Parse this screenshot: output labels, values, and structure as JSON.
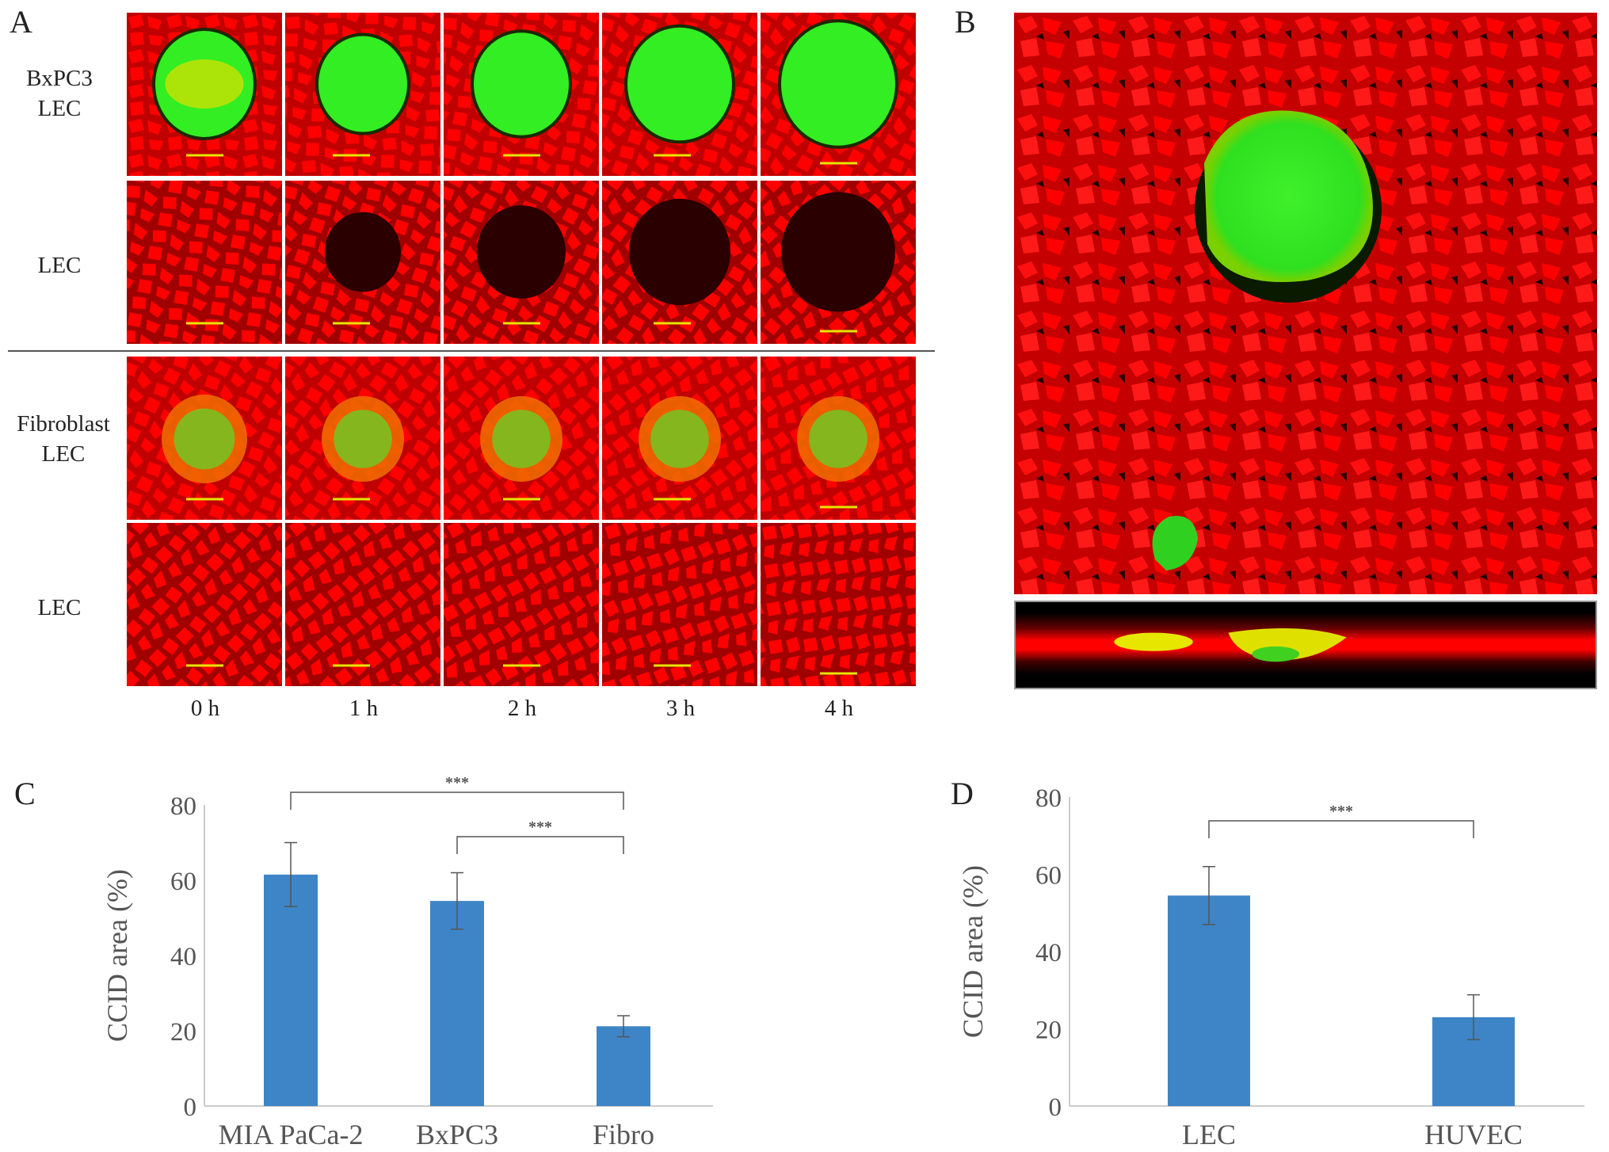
{
  "panels": {
    "a": {
      "letter": "A",
      "row_labels": [
        [
          "BxPC3",
          "LEC"
        ],
        [
          "LEC"
        ],
        [
          "Fibroblast",
          "LEC"
        ],
        [
          "LEC"
        ]
      ],
      "time_labels": [
        "0 h",
        "1 h",
        "2 h",
        "3 h",
        "4 h"
      ],
      "colors": {
        "cells": "#ff0000",
        "background": "#2a0000",
        "spheroid": "#33ee22",
        "overlap": "#e0e000",
        "scale_bar": "#e6e600"
      }
    },
    "b": {
      "letter": "B"
    },
    "c": {
      "letter": "C"
    },
    "d": {
      "letter": "D"
    }
  },
  "chart_data": [
    {
      "type": "bar",
      "panel": "C",
      "categories": [
        "MIA PaCa-2",
        "BxPC3",
        "Fibro"
      ],
      "values": [
        61.5,
        54.5,
        21.2
      ],
      "error": [
        8.5,
        7.5,
        2.8
      ],
      "ylabel": "CCID area (%)",
      "ylim": [
        0,
        80
      ],
      "yticks": [
        0,
        20,
        40,
        60,
        80
      ],
      "significance": [
        {
          "from": 0,
          "to": 2,
          "label": "***"
        },
        {
          "from": 1,
          "to": 2,
          "label": "***"
        }
      ],
      "bar_color": "#3d85c6",
      "grid": false
    },
    {
      "type": "bar",
      "panel": "D",
      "categories": [
        "LEC",
        "HUVEC"
      ],
      "values": [
        54.5,
        23.0
      ],
      "error": [
        7.5,
        5.8
      ],
      "ylabel": "CCID area (%)",
      "ylim": [
        0,
        80
      ],
      "yticks": [
        0,
        20,
        40,
        60,
        80
      ],
      "significance": [
        {
          "from": 0,
          "to": 1,
          "label": "***"
        }
      ],
      "bar_color": "#3d85c6",
      "grid": false
    }
  ]
}
